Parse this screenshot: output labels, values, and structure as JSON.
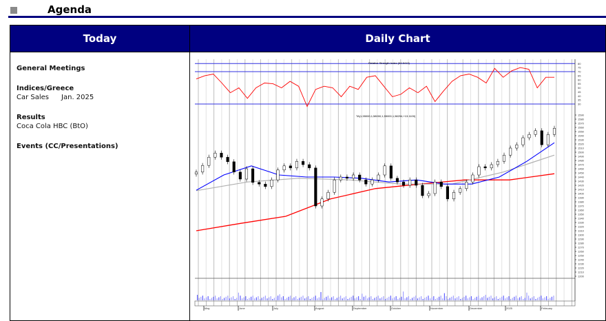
{
  "page": {
    "title": "Agenda"
  },
  "table": {
    "col_today": "Today",
    "col_chart": "Daily Chart"
  },
  "today": {
    "general_meetings": "General Meetings",
    "indices_heading": "Indices/Greece",
    "indices_item": "Car Sales",
    "indices_item_date": "Jan. 2025",
    "results_heading": "Results",
    "results_item": "Coca Cola HBC (BtO)",
    "events_heading": "Events (CC/Presentations)"
  },
  "chart_data": {
    "type": "candlestick",
    "rsi_label": "Relative Strength Index (64.5413)",
    "price_label": "TA(1,55000,1,58000,1,55000,1,58294,+13.1100)",
    "price_axis": {
      "min": 1200,
      "max": 1590,
      "step": 10
    },
    "rsi_levels": [
      80,
      70,
      30
    ],
    "close": [
      1452,
      1468,
      1488,
      1498,
      1488,
      1477,
      1452,
      1435,
      1460,
      1427,
      1423,
      1417,
      1433,
      1457,
      1467,
      1462,
      1478,
      1470,
      1462,
      1370,
      1387,
      1403,
      1433,
      1440,
      1437,
      1445,
      1433,
      1423,
      1433,
      1445,
      1467,
      1437,
      1428,
      1420,
      1433,
      1420,
      1395,
      1400,
      1428,
      1417,
      1387,
      1403,
      1412,
      1428,
      1445,
      1465,
      1462,
      1470,
      1478,
      1493,
      1510,
      1518,
      1535,
      1543,
      1552,
      1518,
      1543,
      1558
    ],
    "ma_short": [
      1408,
      1445,
      1467,
      1445,
      1440,
      1440,
      1437,
      1428,
      1433,
      1423,
      1423,
      1440,
      1478,
      1523
    ],
    "ma_mid": [
      1407,
      1428,
      1437,
      1433,
      1423,
      1423,
      1452,
      1493
    ],
    "ma_long": [
      1310,
      1328,
      1345,
      1387,
      1412,
      1423,
      1433,
      1433,
      1448
    ],
    "rsi": [
      61,
      65,
      67,
      56,
      44,
      50,
      37,
      50,
      56,
      55,
      50,
      58,
      52,
      27,
      48,
      52,
      50,
      39,
      52,
      48,
      63,
      65,
      52,
      39,
      42,
      50,
      44,
      52,
      33,
      46,
      58,
      65,
      67,
      63,
      56,
      74,
      63,
      71,
      75,
      73,
      50,
      63,
      63
    ],
    "month_labels": [
      "May",
      "June",
      "July",
      "August",
      "September",
      "October",
      "November",
      "December",
      "2025",
      "February"
    ],
    "colors": {
      "rsi": "#ff0000",
      "ma_short": "#0000ff",
      "ma_mid": "#b0b0b0",
      "ma_long": "#ff0000",
      "levels": "#3030e0",
      "volume": "#6060ff"
    }
  }
}
